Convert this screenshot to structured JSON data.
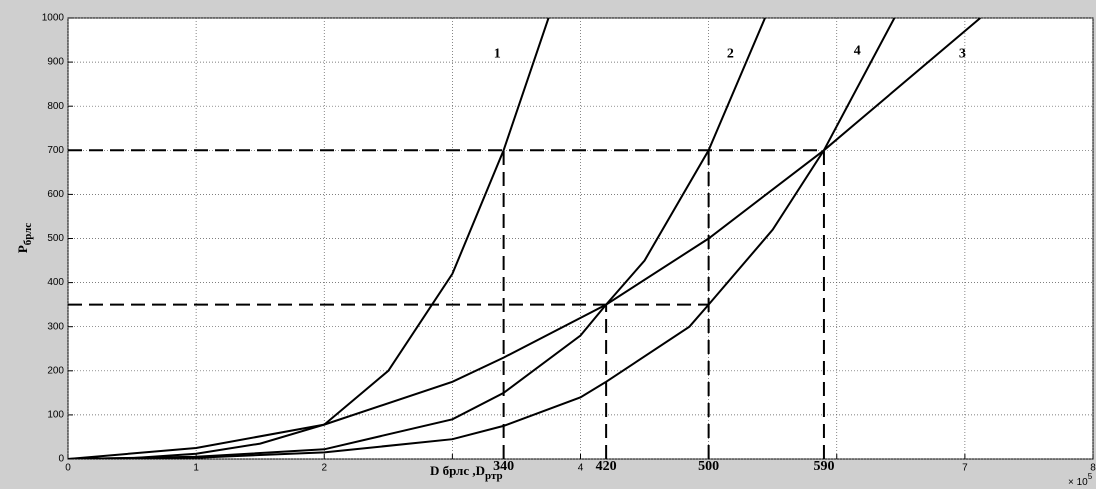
{
  "chart_data": {
    "type": "line",
    "ylabel": [
      {
        "text": "P",
        "sub": false
      },
      {
        "text": "брлс",
        "sub": true
      }
    ],
    "xlabel": [
      {
        "text": "D",
        "sub": false
      },
      {
        "text": " брлс ,D",
        "sub": false
      },
      {
        "text": "ртр",
        "sub": true
      }
    ],
    "x_exponent": {
      "base": "× 10",
      "power": "5"
    },
    "xlim": [
      0,
      8
    ],
    "ylim": [
      0,
      1000
    ],
    "xticks": [
      0,
      1,
      2,
      {
        "value": 3,
        "label": null
      },
      4,
      {
        "value": 5,
        "label": null
      },
      {
        "value": 6,
        "label": null
      },
      7,
      8
    ],
    "yticks": [
      0,
      100,
      200,
      300,
      400,
      500,
      600,
      700,
      800,
      900,
      1000
    ],
    "grid": true,
    "series": [
      {
        "name": "1",
        "color": "#000000",
        "label_at": [
          3.35,
          918
        ],
        "x": [
          0,
          0.5,
          1,
          1.5,
          2,
          2.5,
          3,
          3.4,
          3.75
        ],
        "values": [
          0,
          2,
          12,
          35,
          78,
          200,
          420,
          700,
          1000
        ]
      },
      {
        "name": "2",
        "color": "#000000",
        "label_at": [
          5.17,
          918
        ],
        "x": [
          0,
          1,
          2,
          3,
          3.4,
          4,
          4.2,
          4.5,
          5,
          5.44
        ],
        "values": [
          0,
          5,
          22,
          90,
          150,
          280,
          350,
          450,
          700,
          1000
        ]
      },
      {
        "name": "3",
        "color": "#000000",
        "label_at": [
          6.98,
          918
        ],
        "x": [
          0,
          1,
          2,
          3,
          3.4,
          4.2,
          5,
          5.9,
          7.12
        ],
        "values": [
          0,
          25,
          78,
          175,
          230,
          350,
          500,
          700,
          1000
        ]
      },
      {
        "name": "4",
        "color": "#000000",
        "label_at": [
          6.16,
          925
        ],
        "x": [
          0,
          1,
          2,
          3,
          3.4,
          4,
          4.2,
          4.85,
          5,
          5.5,
          5.9,
          6.45
        ],
        "values": [
          0,
          3,
          15,
          45,
          75,
          140,
          175,
          300,
          350,
          520,
          700,
          1000
        ]
      }
    ],
    "hlines": [
      {
        "y": 700,
        "x_end": 5.9
      },
      {
        "y": 350,
        "x_end": 5.0
      }
    ],
    "vlines": [
      {
        "x": 3.4,
        "y_top": 700,
        "label": "340"
      },
      {
        "x": 4.2,
        "y_top": 350,
        "label": "420"
      },
      {
        "x": 5.0,
        "y_top": 700,
        "label": "500"
      },
      {
        "x": 5.9,
        "y_top": 700,
        "label": "590"
      }
    ]
  }
}
